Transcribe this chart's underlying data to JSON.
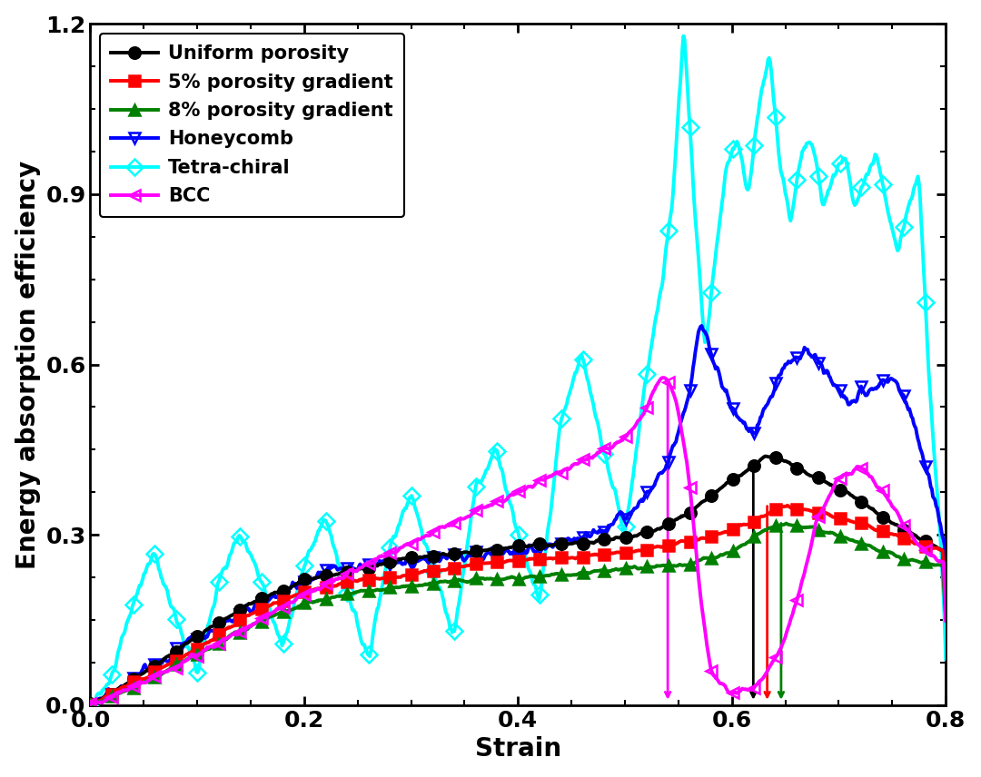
{
  "title": "",
  "xlabel": "Strain",
  "ylabel": "Energy absorption efficiency",
  "xlim": [
    0.0,
    0.8
  ],
  "ylim": [
    0.0,
    1.2
  ],
  "xticks": [
    0.0,
    0.2,
    0.4,
    0.6,
    0.8
  ],
  "yticks": [
    0.0,
    0.3,
    0.6,
    0.9,
    1.2
  ],
  "legend_labels": [
    "Uniform porosity",
    "5% porosity gradient",
    "8% porosity gradient",
    "Honeycomb",
    "Tetra-chiral",
    "BCC"
  ],
  "colors": [
    "black",
    "red",
    "green",
    "blue",
    "cyan",
    "magenta"
  ],
  "background_color": "white",
  "label_fontsize": 20,
  "tick_fontsize": 18,
  "legend_fontsize": 15
}
